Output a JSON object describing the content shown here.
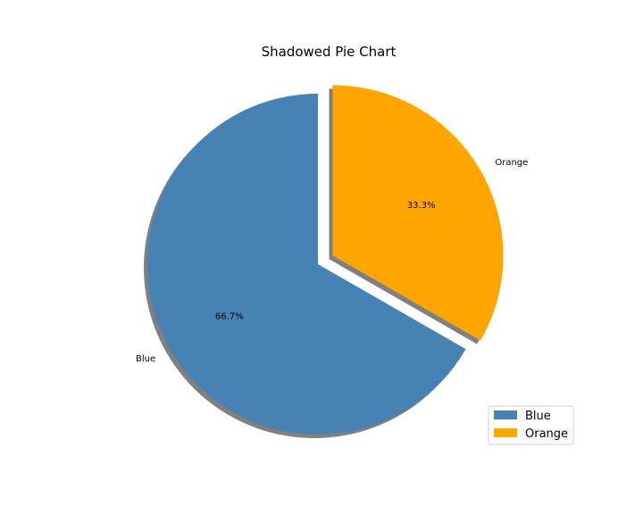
{
  "chart_data": {
    "type": "pie",
    "title": "Shadowed Pie Chart",
    "categories": [
      "Blue",
      "Orange"
    ],
    "values": [
      66.7,
      33.3
    ],
    "percent_labels": [
      "66.7%",
      "33.3%"
    ],
    "colors": [
      "#4682b4",
      "#ffa500"
    ],
    "explode": [
      0,
      0.1
    ],
    "shadow": true,
    "start_angle_deg": 90,
    "legend_position": "lower-right"
  }
}
